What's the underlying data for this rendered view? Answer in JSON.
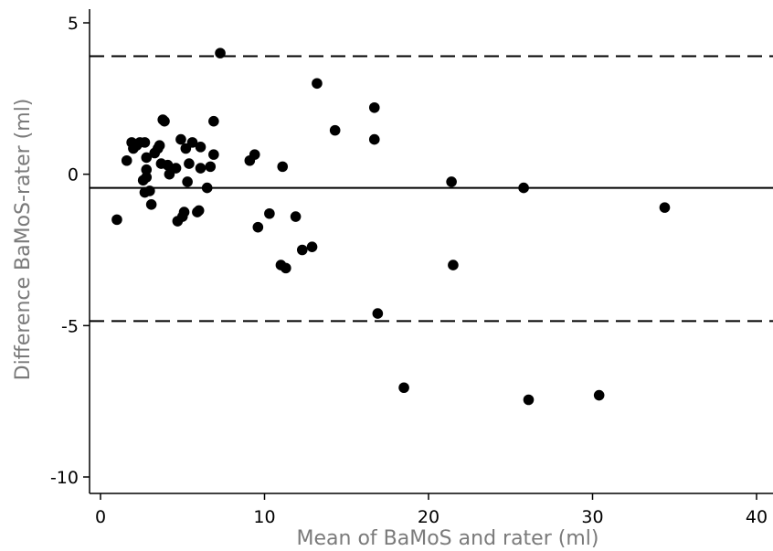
{
  "chart_data": {
    "type": "scatter",
    "title": "",
    "xlabel": "Mean of BaMoS and rater (ml)",
    "ylabel": "Difference BaMoS-rater (ml)",
    "xlim": [
      0,
      40
    ],
    "ylim": [
      -10,
      5
    ],
    "xticks": [
      0,
      10,
      20,
      30,
      40
    ],
    "yticks": [
      5,
      0,
      -5,
      -10
    ],
    "xtick_labels": [
      "0",
      "10",
      "20",
      "30",
      "40"
    ],
    "ytick_labels": [
      "5",
      "0",
      "-5",
      "-10"
    ],
    "grid": false,
    "legend": "none",
    "mean_difference": -0.45,
    "limits_of_agreement": [
      3.9,
      -4.85
    ],
    "colors": {
      "points": "#000000",
      "mean_line": "#000000",
      "limit_lines": "#000000",
      "axis_title": "#7a7a7a"
    },
    "points": [
      {
        "x": 1.0,
        "y": -1.5
      },
      {
        "x": 1.6,
        "y": 0.45
      },
      {
        "x": 1.9,
        "y": 1.05
      },
      {
        "x": 2.0,
        "y": 0.85
      },
      {
        "x": 2.2,
        "y": 0.95
      },
      {
        "x": 2.4,
        "y": 1.05
      },
      {
        "x": 2.7,
        "y": 1.05
      },
      {
        "x": 2.6,
        "y": -0.2
      },
      {
        "x": 2.7,
        "y": -0.6
      },
      {
        "x": 2.8,
        "y": 0.55
      },
      {
        "x": 2.8,
        "y": 0.15
      },
      {
        "x": 2.8,
        "y": -0.1
      },
      {
        "x": 3.0,
        "y": -0.55
      },
      {
        "x": 3.1,
        "y": -1.0
      },
      {
        "x": 3.3,
        "y": 0.7
      },
      {
        "x": 3.5,
        "y": 0.85
      },
      {
        "x": 3.6,
        "y": 0.95
      },
      {
        "x": 3.7,
        "y": 0.35
      },
      {
        "x": 3.8,
        "y": 1.8
      },
      {
        "x": 3.9,
        "y": 1.75
      },
      {
        "x": 4.1,
        "y": 0.3
      },
      {
        "x": 4.2,
        "y": 0.0
      },
      {
        "x": 4.6,
        "y": 0.2
      },
      {
        "x": 4.7,
        "y": -1.55
      },
      {
        "x": 4.9,
        "y": 1.15
      },
      {
        "x": 5.0,
        "y": -1.4
      },
      {
        "x": 5.1,
        "y": -1.25
      },
      {
        "x": 5.2,
        "y": 0.85
      },
      {
        "x": 5.3,
        "y": -0.25
      },
      {
        "x": 5.4,
        "y": 0.35
      },
      {
        "x": 5.6,
        "y": 1.05
      },
      {
        "x": 5.9,
        "y": -1.25
      },
      {
        "x": 6.0,
        "y": -1.2
      },
      {
        "x": 6.1,
        "y": 0.9
      },
      {
        "x": 6.1,
        "y": 0.2
      },
      {
        "x": 6.5,
        "y": -0.45
      },
      {
        "x": 6.7,
        "y": 0.25
      },
      {
        "x": 6.9,
        "y": 1.75
      },
      {
        "x": 6.9,
        "y": 0.65
      },
      {
        "x": 7.3,
        "y": 4.0
      },
      {
        "x": 9.1,
        "y": 0.45
      },
      {
        "x": 9.4,
        "y": 0.65
      },
      {
        "x": 9.6,
        "y": -1.75
      },
      {
        "x": 10.3,
        "y": -1.3
      },
      {
        "x": 11.0,
        "y": -3.0
      },
      {
        "x": 11.1,
        "y": 0.25
      },
      {
        "x": 11.3,
        "y": -3.1
      },
      {
        "x": 11.9,
        "y": -1.4
      },
      {
        "x": 12.3,
        "y": -2.5
      },
      {
        "x": 12.9,
        "y": -2.4
      },
      {
        "x": 13.2,
        "y": 3.0
      },
      {
        "x": 14.3,
        "y": 1.45
      },
      {
        "x": 16.7,
        "y": 2.2
      },
      {
        "x": 16.7,
        "y": 1.15
      },
      {
        "x": 16.9,
        "y": -4.6
      },
      {
        "x": 18.5,
        "y": -7.05
      },
      {
        "x": 21.4,
        "y": -0.25
      },
      {
        "x": 21.5,
        "y": -3.0
      },
      {
        "x": 25.8,
        "y": -0.45
      },
      {
        "x": 26.1,
        "y": -7.45
      },
      {
        "x": 30.4,
        "y": -7.3
      },
      {
        "x": 34.4,
        "y": -1.1
      }
    ]
  }
}
